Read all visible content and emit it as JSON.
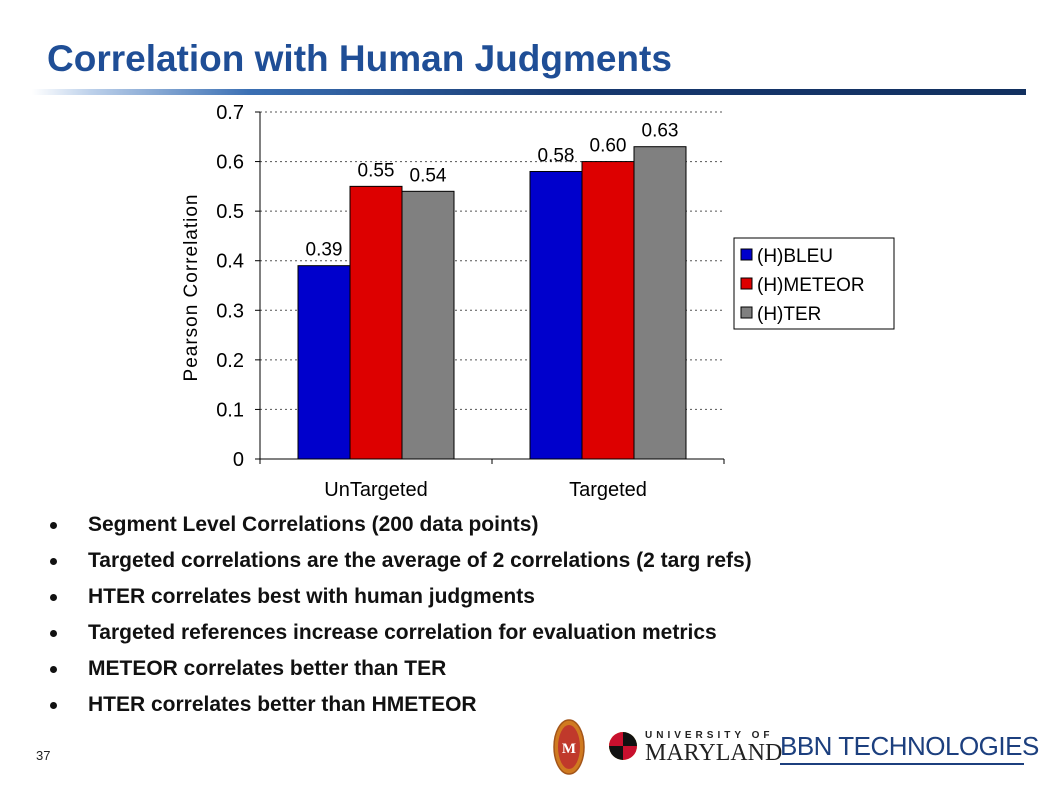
{
  "title": "Correlation with Human Judgments",
  "slide_number": "37",
  "bullets": [
    "Segment Level Correlations (200 data points)",
    "Targeted correlations are the average of 2 correlations (2 targ refs)",
    "HTER correlates best with human judgments",
    "Targeted references increase correlation for evaluation metrics",
    "METEOR correlates better than TER",
    "HTER correlates better than HMETEOR"
  ],
  "logos": {
    "umd_small": "UNIVERSITY OF",
    "umd_big": "MARYLAND",
    "bbn": "BBN TECHNOLOGIES"
  },
  "chart_data": {
    "type": "bar",
    "categories": [
      "UnTargeted",
      "Targeted"
    ],
    "series": [
      {
        "name": "(H)BLEU",
        "color": "#0000cc",
        "values": [
          0.39,
          0.58
        ],
        "labels": [
          "0.39",
          "0.58"
        ]
      },
      {
        "name": "(H)METEOR",
        "color": "#dd0000",
        "values": [
          0.55,
          0.6
        ],
        "labels": [
          "0.55",
          "0.60"
        ]
      },
      {
        "name": "(H)TER",
        "color": "#808080",
        "values": [
          0.54,
          0.63
        ],
        "labels": [
          "0.54",
          "0.63"
        ]
      }
    ],
    "ylabel": "Pearson Correlation",
    "ylim": [
      0,
      0.7
    ],
    "yticks": [
      0,
      0.1,
      0.2,
      0.3,
      0.4,
      0.5,
      0.6,
      0.7
    ],
    "ytick_labels": [
      "0",
      "0.1",
      "0.2",
      "0.3",
      "0.4",
      "0.5",
      "0.6",
      "0.7"
    ],
    "grid": "dotted horizontal",
    "legend_position": "right"
  }
}
